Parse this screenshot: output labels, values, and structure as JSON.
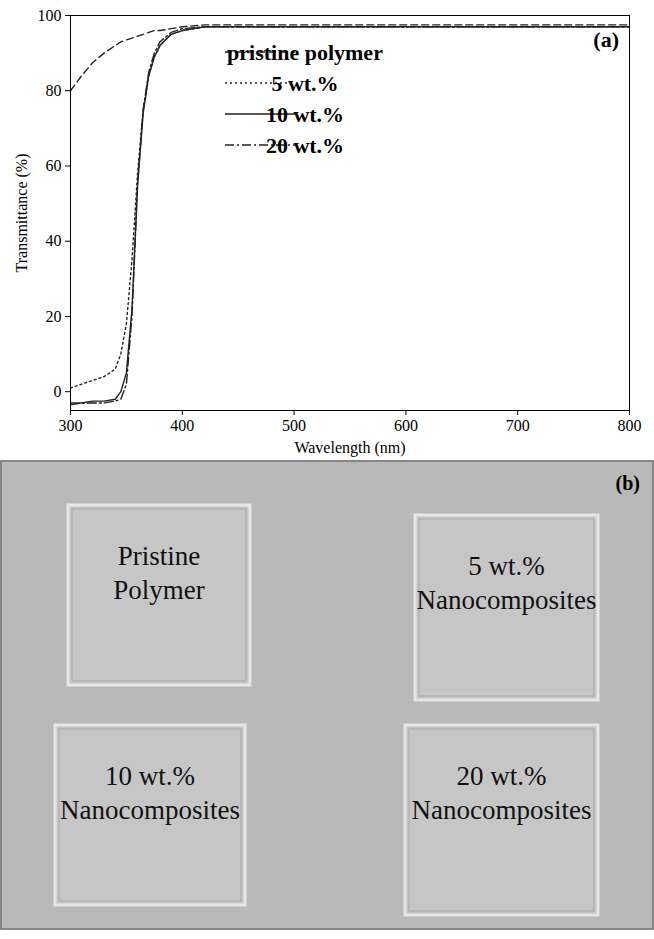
{
  "chart_data": {
    "type": "line",
    "x_label": "Wavelength (nm)",
    "y_label": "Transmittance (%)",
    "annotations": [
      "(a)"
    ],
    "x": [
      300,
      310,
      320,
      330,
      340,
      345,
      350,
      355,
      360,
      365,
      370,
      375,
      380,
      390,
      400,
      420,
      450,
      500,
      600,
      700,
      800
    ],
    "series": [
      {
        "name": "pristine polymer",
        "color": "#222222",
        "line_style": "dashed",
        "values": [
          80,
          84,
          87.5,
          90,
          92,
          93,
          93.5,
          94,
          94.5,
          95,
          95.5,
          96,
          96,
          96.5,
          97,
          97.5,
          97.5,
          97.5,
          97.5,
          97.5,
          97.5
        ]
      },
      {
        "name": "5 wt.%",
        "color": "#222222",
        "line_style": "dotted",
        "values": [
          1,
          2,
          3,
          4,
          6,
          10,
          18,
          35,
          58,
          75,
          84,
          89,
          92,
          95,
          96,
          97,
          97,
          97,
          97,
          97,
          97
        ]
      },
      {
        "name": "10 wt.%",
        "color": "#222222",
        "line_style": "solid",
        "values": [
          -3,
          -3,
          -2.5,
          -2.5,
          -2,
          0,
          5,
          22,
          55,
          74,
          84,
          89,
          92,
          95,
          96,
          97,
          97,
          97,
          97,
          97,
          97
        ]
      },
      {
        "name": "20 wt.%",
        "color": "#222222",
        "line_style": "dashdot",
        "values": [
          -3.5,
          -3,
          -3,
          -3,
          -2.5,
          -2,
          2,
          20,
          55,
          75,
          85,
          90,
          93,
          95.5,
          96.5,
          97,
          97,
          97,
          97,
          97,
          97
        ]
      }
    ],
    "xlim": [
      300,
      800
    ],
    "xticks": [
      300,
      400,
      500,
      600,
      700,
      800
    ],
    "ylim": [
      -5,
      100
    ],
    "yticks": [
      0,
      20,
      40,
      60,
      80,
      100
    ],
    "grid": false,
    "legend": "top"
  },
  "photo": {
    "panel_label": "(b)",
    "samples": [
      {
        "lines": [
          "Pristine",
          "Polymer"
        ]
      },
      {
        "lines": [
          "5 wt.%",
          "Nanocomposites"
        ]
      },
      {
        "lines": [
          "10 wt.%",
          "Nanocomposites"
        ]
      },
      {
        "lines": [
          "20 wt.%",
          "Nanocomposites"
        ]
      }
    ]
  }
}
